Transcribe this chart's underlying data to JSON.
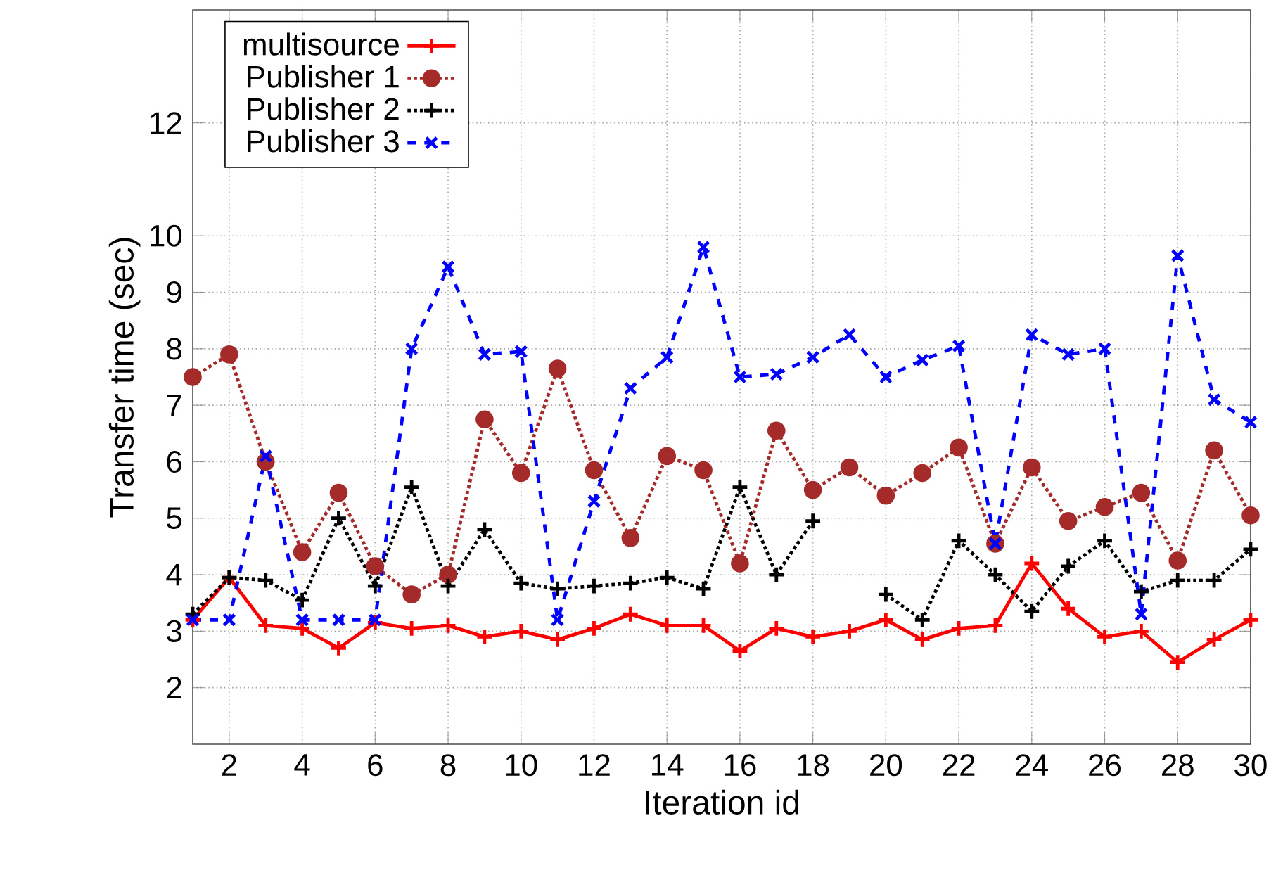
{
  "chart_data": {
    "type": "line",
    "xlabel": "Iteration id",
    "ylabel": "Transfer time (sec)",
    "x": [
      1,
      2,
      3,
      4,
      5,
      6,
      7,
      8,
      9,
      10,
      11,
      12,
      13,
      14,
      15,
      16,
      17,
      18,
      19,
      20,
      21,
      22,
      23,
      24,
      25,
      26,
      27,
      28,
      29,
      30
    ],
    "xlim": [
      1,
      30
    ],
    "xticks": [
      2,
      4,
      6,
      8,
      10,
      12,
      14,
      16,
      18,
      20,
      22,
      24,
      26,
      28,
      30
    ],
    "ylim": [
      1,
      14
    ],
    "yticks": [
      2,
      3,
      4,
      5,
      6,
      7,
      8,
      9,
      10,
      12
    ],
    "grid": true,
    "legend": "top left",
    "series": [
      {
        "name": "multisource",
        "color": "#ff0000",
        "marker": "cross",
        "line_style": "solid",
        "values": [
          3.2,
          3.95,
          3.1,
          3.05,
          2.7,
          3.15,
          3.05,
          3.1,
          2.9,
          3.0,
          2.85,
          3.05,
          3.3,
          3.1,
          3.1,
          2.65,
          3.05,
          2.9,
          3.0,
          3.2,
          2.85,
          3.05,
          3.1,
          4.2,
          3.4,
          2.9,
          3.0,
          2.45,
          2.85,
          3.2
        ]
      },
      {
        "name": "Publisher 1",
        "color": "#a52a2a",
        "marker": "circle",
        "line_style": "dotted",
        "values": [
          7.5,
          7.9,
          6.0,
          4.4,
          5.45,
          4.15,
          3.65,
          4.0,
          6.75,
          5.8,
          7.65,
          5.85,
          4.65,
          6.1,
          5.85,
          4.2,
          6.55,
          5.5,
          5.9,
          5.4,
          5.8,
          6.25,
          4.55,
          5.9,
          4.95,
          5.2,
          5.45,
          4.25,
          6.2,
          5.05
        ]
      },
      {
        "name": "Publisher 2",
        "color": "#000000",
        "marker": "cross",
        "line_style": "dotted",
        "values": [
          3.3,
          3.95,
          3.9,
          3.55,
          5.0,
          3.8,
          5.55,
          3.8,
          4.8,
          3.85,
          3.75,
          3.8,
          3.85,
          3.95,
          3.75,
          5.55,
          4.0,
          4.95,
          null,
          3.65,
          3.2,
          4.6,
          4.0,
          3.35,
          4.15,
          4.6,
          3.7,
          3.9,
          3.9,
          4.45
        ]
      },
      {
        "name": "Publisher 3",
        "color": "#0000ff",
        "marker": "x",
        "line_style": "dashed",
        "values": [
          3.2,
          3.2,
          6.1,
          3.2,
          3.2,
          3.2,
          8.0,
          9.45,
          7.9,
          7.95,
          3.2,
          5.3,
          7.3,
          7.85,
          9.8,
          7.5,
          7.55,
          7.85,
          8.25,
          7.5,
          7.8,
          8.05,
          4.55,
          8.25,
          7.9,
          8.0,
          3.3,
          9.65,
          7.1,
          6.7
        ]
      }
    ]
  }
}
